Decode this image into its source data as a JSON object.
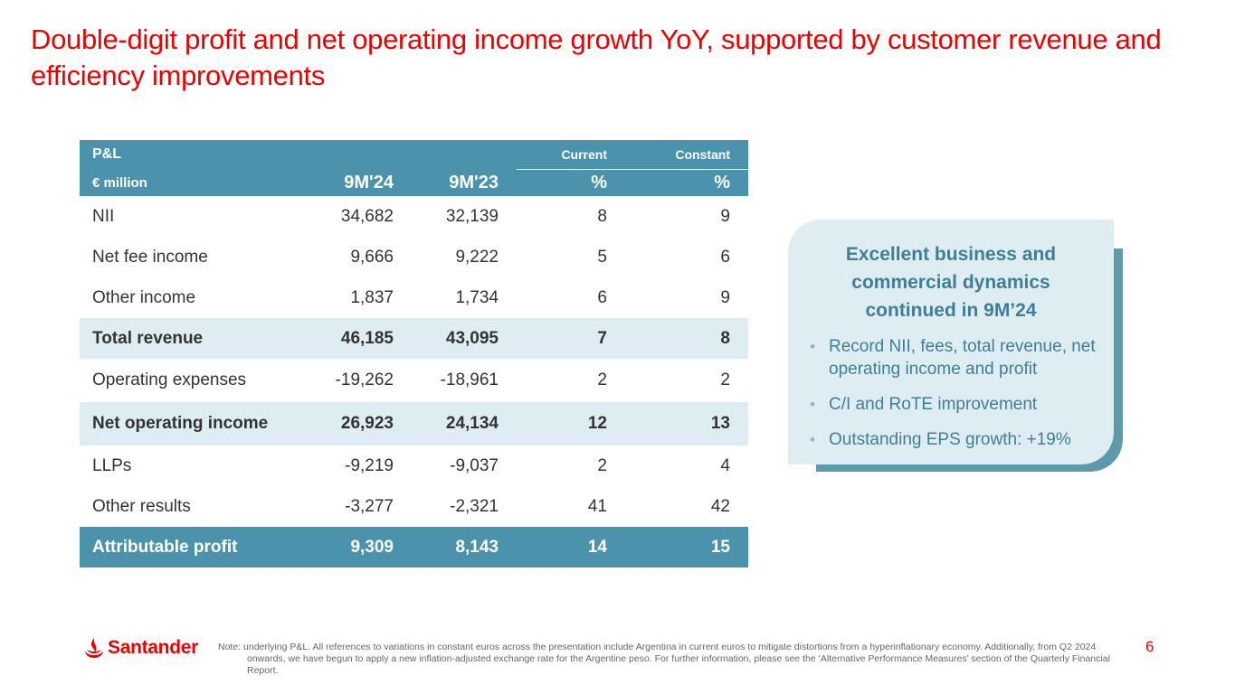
{
  "slide": {
    "title": "Double-digit profit and net operating income growth YoY, supported by customer revenue and efficiency improvements",
    "page_number": "6"
  },
  "table": {
    "header": {
      "pl": "P&L",
      "unit": "€ million",
      "col_9m24": "9M'24",
      "col_9m23": "9M'23",
      "current": "Current",
      "constant": "Constant",
      "pct_current": "%",
      "pct_constant": "%"
    },
    "rows": [
      {
        "label": "NII",
        "v24": "34,682",
        "v23": "32,139",
        "cur": "8",
        "con": "9"
      },
      {
        "label": "Net fee income",
        "v24": "9,666",
        "v23": "9,222",
        "cur": "5",
        "con": "6"
      },
      {
        "label": "Other income",
        "v24": "1,837",
        "v23": "1,734",
        "cur": "6",
        "con": "9"
      },
      {
        "label": "Total revenue",
        "v24": "46,185",
        "v23": "43,095",
        "cur": "7",
        "con": "8"
      },
      {
        "label": "Operating expenses",
        "v24": "-19,262",
        "v23": "-18,961",
        "cur": "2",
        "con": "2"
      },
      {
        "label": "Net operating income",
        "v24": "26,923",
        "v23": "24,134",
        "cur": "12",
        "con": "13"
      },
      {
        "label": "LLPs",
        "v24": "-9,219",
        "v23": "-9,037",
        "cur": "2",
        "con": "4"
      },
      {
        "label": "Other results",
        "v24": "-3,277",
        "v23": "-2,321",
        "cur": "41",
        "con": "42"
      },
      {
        "label": "Attributable profit",
        "v24": "9,309",
        "v23": "8,143",
        "cur": "14",
        "con": "15"
      }
    ]
  },
  "callout": {
    "title_line1": "Excellent business and",
    "title_line2": "commercial dynamics",
    "title_line3": "continued in 9M’24",
    "bullets": [
      "Record NII, fees, total revenue, net operating income and profit",
      "C/I and RoTE improvement",
      "Outstanding EPS growth: +19%"
    ],
    "bullet_glyph": "•"
  },
  "footer": {
    "brand": "Santander",
    "note": "Note: underlying P&L. All references to variations in constant euros across the presentation include Argentina in current euros to mitigate distortions from a hyperinflationary economy. Additionally, from Q2 2024 onwards, we have begun to apply a new inflation-adjusted exchange rate for the Argentine peso. For further information, please see the ‘Alternative Performance Measures’ section of the Quarterly Financial Report."
  },
  "colors": {
    "brand_red": "#ec0000",
    "table_header": "#4b93ad",
    "highlight_row": "#deedf2",
    "callout_text": "#3f7f96"
  }
}
